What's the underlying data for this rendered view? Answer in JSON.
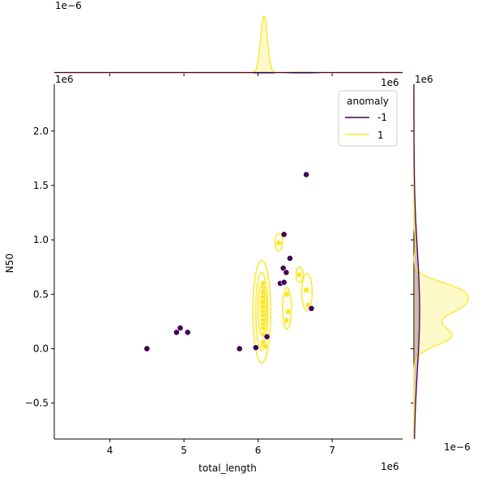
{
  "colors": {
    "anomaly_neg": "#440154",
    "anomaly_pos": "#fde725",
    "contour_pos": "#fde725",
    "axis": "#000000"
  },
  "chart_data": {
    "type": "scatter",
    "title": "",
    "xlabel": "total_length",
    "ylabel": "N50",
    "x_offset_label": "1e6",
    "y_offset_label": "1e6",
    "x_scale_note": "units of 1e6",
    "y_scale_note": "units of 1e6",
    "xlim": [
      3.25,
      7.95
    ],
    "ylim": [
      -0.83,
      2.43
    ],
    "xticks": [
      4,
      5,
      6,
      7
    ],
    "xtick_labels": [
      "4",
      "5",
      "6",
      "7"
    ],
    "yticks": [
      -0.5,
      0.0,
      0.5,
      1.0,
      1.5,
      2.0
    ],
    "ytick_labels": [
      "−0.5",
      "0.0",
      "0.5",
      "1.0",
      "1.5",
      "2.0"
    ],
    "grid": false,
    "legend": {
      "title": "anomaly",
      "placement": "top-right",
      "entries": [
        {
          "label": "-1",
          "color": "#440154"
        },
        {
          "label": "1",
          "color": "#fde725"
        }
      ]
    },
    "series": [
      {
        "name": "-1",
        "color": "#440154",
        "points": [
          {
            "x": 4.5,
            "y": 0.0
          },
          {
            "x": 4.9,
            "y": 0.15
          },
          {
            "x": 4.95,
            "y": 0.19
          },
          {
            "x": 5.05,
            "y": 0.15
          },
          {
            "x": 5.75,
            "y": 0.0
          },
          {
            "x": 5.97,
            "y": 0.01
          },
          {
            "x": 6.12,
            "y": 0.11
          },
          {
            "x": 6.3,
            "y": 0.6
          },
          {
            "x": 6.35,
            "y": 0.61
          },
          {
            "x": 6.34,
            "y": 0.74
          },
          {
            "x": 6.38,
            "y": 0.7
          },
          {
            "x": 6.35,
            "y": 1.05
          },
          {
            "x": 6.43,
            "y": 0.83
          },
          {
            "x": 6.65,
            "y": 1.6
          },
          {
            "x": 6.72,
            "y": 0.37
          }
        ]
      },
      {
        "name": "1",
        "color": "#fde725",
        "points": [
          {
            "x": 6.07,
            "y": 0.03
          },
          {
            "x": 6.07,
            "y": 0.06
          },
          {
            "x": 6.07,
            "y": 0.13
          },
          {
            "x": 6.07,
            "y": 0.19
          },
          {
            "x": 6.07,
            "y": 0.23
          },
          {
            "x": 6.07,
            "y": 0.27
          },
          {
            "x": 6.07,
            "y": 0.31
          },
          {
            "x": 6.07,
            "y": 0.35
          },
          {
            "x": 6.07,
            "y": 0.39
          },
          {
            "x": 6.07,
            "y": 0.43
          },
          {
            "x": 6.07,
            "y": 0.48
          },
          {
            "x": 6.07,
            "y": 0.52
          },
          {
            "x": 6.07,
            "y": 0.57
          },
          {
            "x": 6.07,
            "y": 0.6
          },
          {
            "x": 6.1,
            "y": 0.02
          },
          {
            "x": 6.28,
            "y": 0.97
          },
          {
            "x": 6.38,
            "y": 0.26
          },
          {
            "x": 6.41,
            "y": 0.34
          },
          {
            "x": 6.39,
            "y": 0.5
          },
          {
            "x": 6.55,
            "y": 0.68
          },
          {
            "x": 6.65,
            "y": 0.54
          },
          {
            "x": 6.68,
            "y": 0.4
          }
        ]
      }
    ],
    "kde_contours_class_1": [
      {
        "cx": 6.05,
        "cy": 0.34,
        "rx": 0.12,
        "ry": 0.47
      },
      {
        "cx": 6.05,
        "cy": 0.34,
        "rx": 0.08,
        "ry": 0.36
      },
      {
        "cx": 6.06,
        "cy": 0.36,
        "rx": 0.06,
        "ry": 0.25
      },
      {
        "cx": 6.07,
        "cy": 0.4,
        "rx": 0.04,
        "ry": 0.13
      },
      {
        "cx": 6.07,
        "cy": 0.27,
        "rx": 0.03,
        "ry": 0.06
      },
      {
        "cx": 6.28,
        "cy": 0.98,
        "rx": 0.05,
        "ry": 0.08
      },
      {
        "cx": 6.39,
        "cy": 0.37,
        "rx": 0.06,
        "ry": 0.19
      },
      {
        "cx": 6.56,
        "cy": 0.68,
        "rx": 0.05,
        "ry": 0.07
      },
      {
        "cx": 6.66,
        "cy": 0.52,
        "rx": 0.07,
        "ry": 0.17
      }
    ],
    "marginal_top": {
      "offset_label": "1e−6",
      "peak_x": 6.08,
      "peak_sd": 0.045,
      "note": "density of total_length for class 1 (sharp peak), near-zero for class -1"
    },
    "marginal_right": {
      "offset_label": "1e−6",
      "offset_label_bottom": "1e−6",
      "offset_label_top": "1e6",
      "note": "density of N50: class 1 bimodal around 0.1 and 0.45; class -1 broad"
    }
  }
}
